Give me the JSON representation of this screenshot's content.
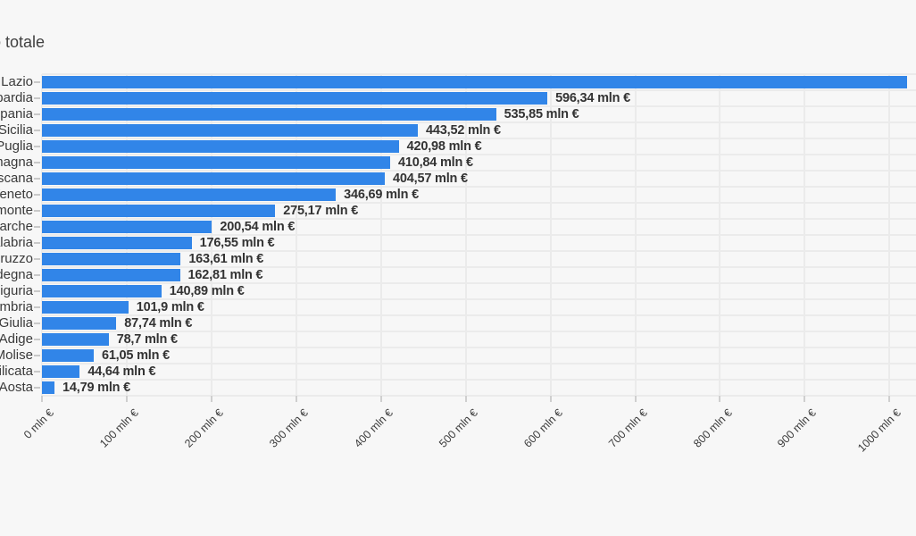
{
  "page": {
    "background": "#f7f7f7",
    "title_visible_fragment": "o totale"
  },
  "chart_data": {
    "type": "bar",
    "orientation": "horizontal",
    "title": "Importo totale",
    "unit": "mln €",
    "legend": "none",
    "grid": "on",
    "categories": [
      "Lazio",
      "Lombardia",
      "Campania",
      "Sicilia",
      "Puglia",
      "Emilia-Romagna",
      "Toscana",
      "Veneto",
      "Piemonte",
      "Marche",
      "Calabria",
      "Abruzzo",
      "Sardegna",
      "Liguria",
      "Umbria",
      "Friuli-Venezia Giulia",
      "Trentino-Alto Adige",
      "Molise",
      "Basilicata",
      "Valle d'Aosta"
    ],
    "values_mln_eur": [
      null,
      596.34,
      535.85,
      443.52,
      420.98,
      410.84,
      404.57,
      346.69,
      275.17,
      200.54,
      176.55,
      163.61,
      162.81,
      140.89,
      101.9,
      87.74,
      78.7,
      61.05,
      44.64,
      14.79
    ],
    "value_labels": [
      "",
      "596,34 mln €",
      "535,85 mln €",
      "443,52 mln €",
      "420,98 mln €",
      "410,84 mln €",
      "404,57 mln €",
      "346,69 mln €",
      "275,17 mln €",
      "200,54 mln €",
      "176,55 mln €",
      "163,61 mln €",
      "162,81 mln €",
      "140,89 mln €",
      "101,9 mln €",
      "87,74 mln €",
      "78,7 mln €",
      "61,05 mln €",
      "44,64 mln €",
      "14,79 mln €"
    ],
    "first_bar_clipped": true,
    "clipped_bar_min_value_mln": 1021,
    "x_axis": {
      "tick_values": [
        0,
        100,
        200,
        300,
        400,
        500,
        600,
        700,
        800,
        900,
        1000
      ],
      "tick_labels": [
        "0 mln €",
        "100 mln €",
        "200 mln €",
        "300 mln €",
        "400 mln €",
        "500 mln €",
        "600 mln €",
        "700 mln €",
        "800 mln €",
        "900 mln €",
        "1000 mln €"
      ],
      "xlim": [
        0,
        1032
      ]
    },
    "colors": {
      "bar": "#3185e8",
      "grid": "#ebebeb",
      "value_text": "#333333",
      "category_text": "#3a3a3a",
      "axis_text": "#3c3c3c",
      "tick": "#c9c9c9",
      "background": "#f7f7f7"
    }
  }
}
